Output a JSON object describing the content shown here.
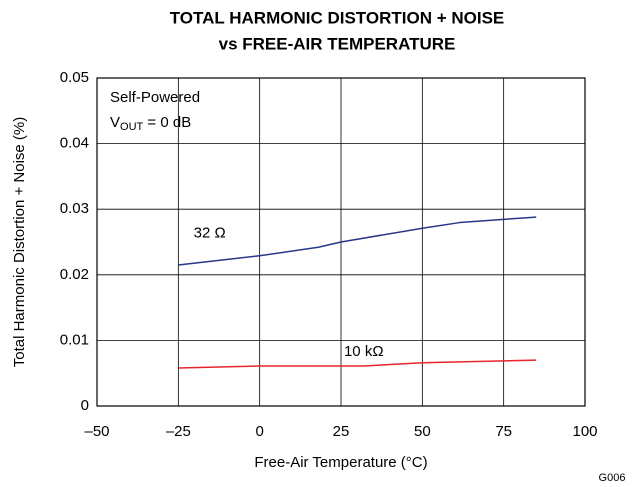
{
  "chart_data": {
    "type": "line",
    "title": [
      "TOTAL HARMONIC DISTORTION + NOISE",
      "vs FREE-AIR TEMPERATURE"
    ],
    "x_label": "Free-Air Temperature (°C)",
    "y_label": "Total Harmonic Distortion + Noise (%)",
    "annotation": "G006",
    "inset": {
      "line1": "Self-Powered",
      "symbol": "V",
      "subscript": "OUT",
      "rest": " = 0 dB"
    },
    "xlim": [
      -50,
      100
    ],
    "xticks": [
      {
        "value": -50,
        "label": "–50"
      },
      {
        "value": -25,
        "label": "–25"
      },
      0,
      25,
      50,
      75,
      100
    ],
    "ylim": [
      0,
      0.05
    ],
    "yticks": [
      0,
      0.01,
      0.02,
      0.03,
      0.04,
      0.05
    ],
    "grid": true,
    "series": [
      {
        "name": "32 Ω",
        "color": "#27378c",
        "x": [
          -25,
          0,
          18,
          25,
          50,
          62,
          85
        ],
        "values": [
          0.0215,
          0.0229,
          0.0242,
          0.025,
          0.0271,
          0.028,
          0.0288
        ]
      },
      {
        "name": "10 kΩ",
        "color": "#e8252b",
        "x": [
          -25,
          0,
          32,
          50,
          85
        ],
        "values": [
          0.0058,
          0.0061,
          0.0061,
          0.0066,
          0.007
        ]
      }
    ]
  }
}
